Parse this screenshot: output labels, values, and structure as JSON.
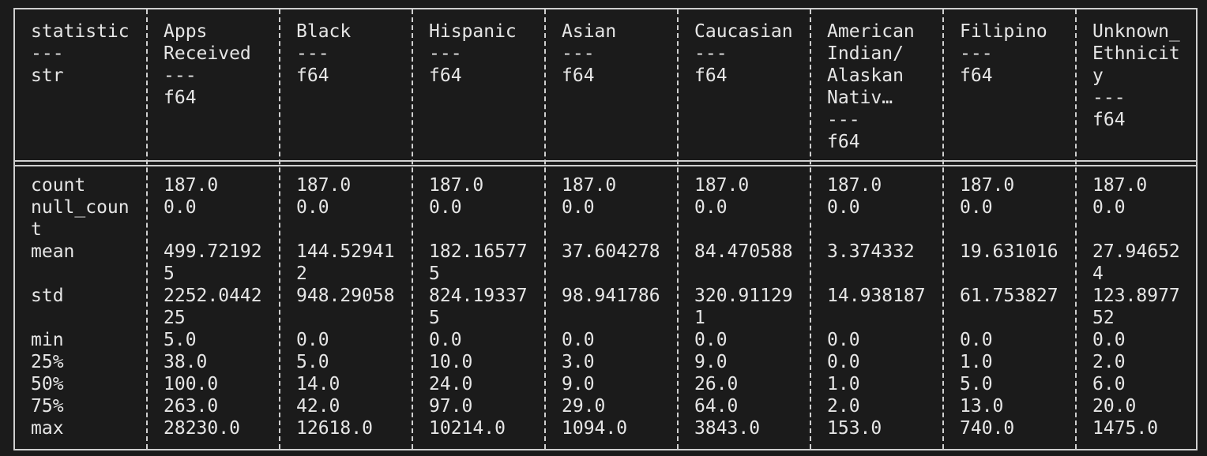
{
  "table": {
    "headers": [
      "statistic\n---\nstr",
      "Apps\nReceived\n---\nf64",
      "Black\n---\nf64",
      "Hispanic\n---\nf64",
      "Asian\n---\nf64",
      "Caucasian\n---\nf64",
      "American\nIndian/\nAlaskan\nNativ…\n---\nf64",
      "Filipino\n---\nf64",
      "Unknown_\nEthnicit\ny\n---\nf64"
    ],
    "columns": [
      "count\nnull_coun\nt\nmean\n\nstd\n\nmin\n25%\n50%\n75%\nmax",
      "187.0\n0.0\n\n499.72192\n5\n2252.0442\n25\n5.0\n38.0\n100.0\n263.0\n28230.0",
      "187.0\n0.0\n\n144.52941\n2\n948.29058\n\n0.0\n5.0\n14.0\n42.0\n12618.0",
      "187.0\n0.0\n\n182.16577\n5\n824.19337\n5\n0.0\n10.0\n24.0\n97.0\n10214.0",
      "187.0\n0.0\n\n37.604278\n\n98.941786\n\n0.0\n3.0\n9.0\n29.0\n1094.0",
      "187.0\n0.0\n\n84.470588\n\n320.91129\n1\n0.0\n9.0\n26.0\n64.0\n3843.0",
      "187.0\n0.0\n\n3.374332\n\n14.938187\n\n0.0\n0.0\n1.0\n2.0\n153.0",
      "187.0\n0.0\n\n19.631016\n\n61.753827\n\n0.0\n1.0\n5.0\n13.0\n740.0",
      "187.0\n0.0\n\n27.94652\n4\n123.8977\n52\n0.0\n2.0\n6.0\n20.0\n1475.0"
    ]
  }
}
